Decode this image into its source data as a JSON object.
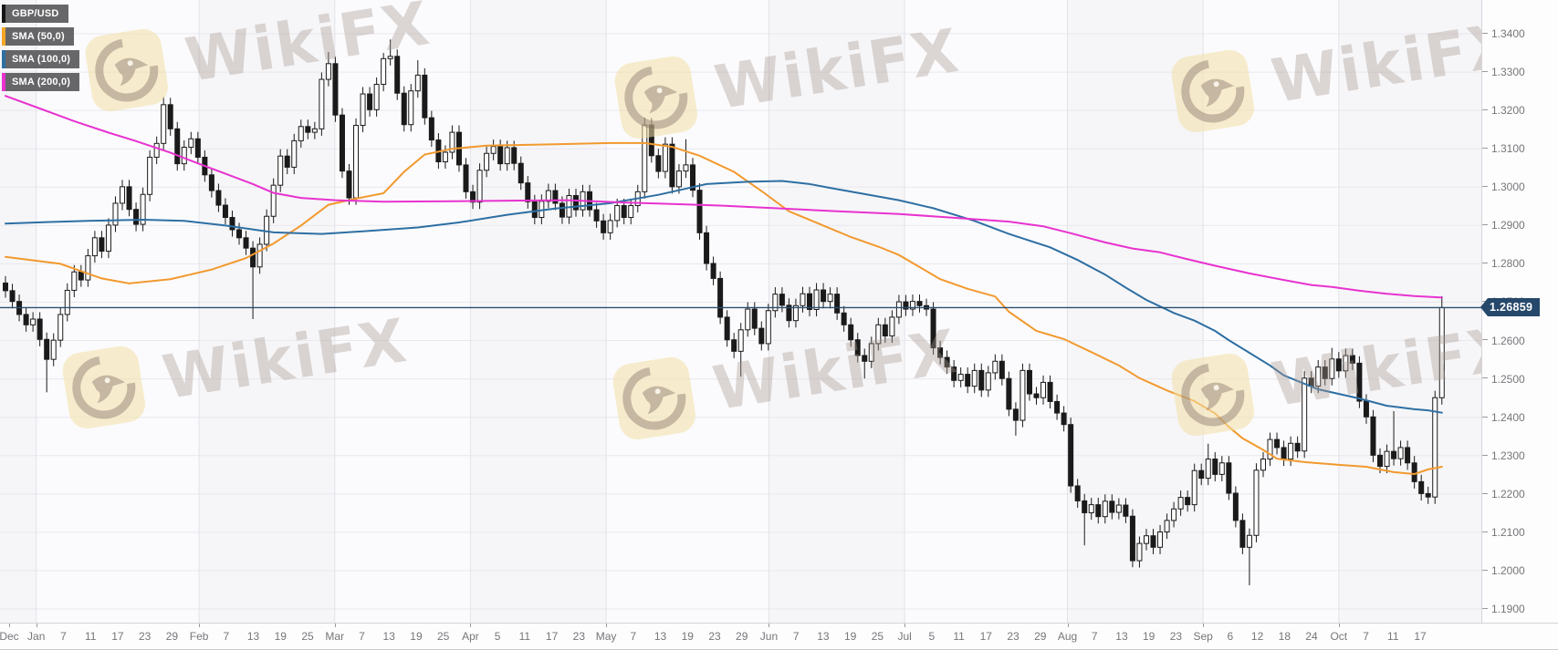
{
  "chart": {
    "symbol": "GBP/USD",
    "legend": [
      {
        "label": "GBP/USD",
        "color": "#151515"
      },
      {
        "label": "SMA (50,0)",
        "color": "#f5a623"
      },
      {
        "label": "SMA (100,0)",
        "color": "#2e6fa3"
      },
      {
        "label": "SMA (200,0)",
        "color": "#e832cf"
      }
    ],
    "last_price_label": "1.26859"
  },
  "watermark": {
    "text": "WikiFX",
    "logo": "eagle-logo"
  },
  "chart_data": {
    "type": "candlestick",
    "title": "GBP/USD daily candles with SMA(50), SMA(100), SMA(200) and last-price line 1.26859",
    "xlabel": "",
    "ylabel": "",
    "y_axis_ticks": [
      "1.3400",
      "1.3300",
      "1.3200",
      "1.3100",
      "1.3000",
      "1.2900",
      "1.2800",
      "1.2700",
      "1.2600",
      "1.2500",
      "1.2400",
      "1.2300",
      "1.2200",
      "1.2100",
      "1.2000",
      "1.1900"
    ],
    "y_range_visible": [
      1.1864,
      1.3488
    ],
    "x_axis_labels": [
      "Dec",
      "Jan",
      "7",
      "11",
      "17",
      "23",
      "29",
      "Feb",
      "7",
      "13",
      "19",
      "25",
      "Mar",
      "7",
      "13",
      "19",
      "25",
      "Apr",
      "5",
      "11",
      "17",
      "23",
      "May",
      "7",
      "13",
      "19",
      "23",
      "29",
      "Jun",
      "7",
      "13",
      "19",
      "25",
      "Jul",
      "5",
      "11",
      "17",
      "23",
      "29",
      "Aug",
      "7",
      "13",
      "19",
      "23",
      "Sep",
      "6",
      "12",
      "18",
      "24",
      "Oct",
      "7",
      "11",
      "17"
    ],
    "last_price": 1.26859,
    "grid": true,
    "legend_position": "top-left",
    "closes": [
      1.273,
      1.2702,
      1.2668,
      1.2641,
      1.2656,
      1.2603,
      1.2551,
      1.2601,
      1.2668,
      1.2731,
      1.2779,
      1.2758,
      1.2821,
      1.2868,
      1.2833,
      1.2901,
      1.2958,
      1.3001,
      1.2942,
      1.2903,
      1.2981,
      1.3078,
      1.3114,
      1.3215,
      1.3152,
      1.3061,
      1.3104,
      1.3126,
      1.3078,
      1.3032,
      1.2991,
      1.2953,
      1.2921,
      1.2889,
      1.2868,
      1.2841,
      1.2792,
      1.2851,
      1.2924,
      1.3005,
      1.3081,
      1.3052,
      1.3121,
      1.3158,
      1.3143,
      1.3152,
      1.3281,
      1.3322,
      1.3188,
      1.3042,
      1.2972,
      1.3161,
      1.3243,
      1.3202,
      1.3268,
      1.3335,
      1.3341,
      1.3245,
      1.3163,
      1.3251,
      1.3292,
      1.3181,
      1.3123,
      1.3066,
      1.3091,
      1.3143,
      1.3058,
      1.2988,
      1.2961,
      1.3044,
      1.3088,
      1.3106,
      1.3061,
      1.3103,
      1.3062,
      1.3011,
      1.2962,
      1.2921,
      1.2963,
      1.2991,
      1.2958,
      1.2922,
      1.2978,
      1.2941,
      1.2988,
      1.2941,
      1.2912,
      1.2881,
      1.2913,
      1.2952,
      1.2921,
      1.2952,
      1.2988,
      1.3162,
      1.3082,
      1.3041,
      1.3112,
      1.3001,
      1.3042,
      1.3058,
      1.2992,
      1.2881,
      1.2801,
      1.2762,
      1.2661,
      1.2602,
      1.2572,
      1.2628,
      1.2682,
      1.2632,
      1.2592,
      1.2678,
      1.2721,
      1.2692,
      1.2652,
      1.2691,
      1.2722,
      1.2681,
      1.2732,
      1.2702,
      1.2721,
      1.2672,
      1.2641,
      1.2602,
      1.2561,
      1.2546,
      1.2592,
      1.2641,
      1.2612,
      1.2661,
      1.2701,
      1.2682,
      1.2702,
      1.2691,
      1.2682,
      1.2581,
      1.2556,
      1.2531,
      1.2496,
      1.2512,
      1.2481,
      1.2522,
      1.2471,
      1.2516,
      1.2546,
      1.2501,
      1.2421,
      1.2392,
      1.2522,
      1.2461,
      1.2451,
      1.2491,
      1.2441,
      1.2411,
      1.2381,
      1.2221,
      1.2182,
      1.2151,
      1.2172,
      1.2141,
      1.2181,
      1.2152,
      1.2171,
      1.2142,
      1.2026,
      1.2071,
      1.2091,
      1.2061,
      1.2101,
      1.2131,
      1.2161,
      1.2191,
      1.2172,
      1.2261,
      1.2241,
      1.2291,
      1.2251,
      1.2281,
      1.2202,
      1.2131,
      1.2061,
      1.2092,
      1.2262,
      1.2291,
      1.2342,
      1.2321,
      1.2291,
      1.2332,
      1.2312,
      1.2502,
      1.2481,
      1.2531,
      1.2501,
      1.2552,
      1.2521,
      1.2561,
      1.2541,
      1.2442,
      1.2401,
      1.2301,
      1.2272,
      1.2311,
      1.2292,
      1.2321,
      1.2281,
      1.2232,
      1.2201,
      1.2192,
      1.2451,
      1.26859
    ],
    "wick_overrides": {
      "6": {
        "low": 1.2465
      },
      "23": {
        "high": 1.3235
      },
      "36": {
        "low": 1.2656
      },
      "47": {
        "high": 1.3352
      },
      "55": {
        "high": 1.335
      },
      "56": {
        "high": 1.3385
      },
      "60": {
        "high": 1.3331
      },
      "93": {
        "high": 1.3181
      },
      "99": {
        "high": 1.3125
      },
      "107": {
        "low": 1.2506
      },
      "125": {
        "low": 1.2501
      },
      "147": {
        "low": 1.2352
      },
      "157": {
        "low": 1.2066
      },
      "164": {
        "low": 1.2009
      },
      "175": {
        "high": 1.2331
      },
      "181": {
        "low": 1.1962
      },
      "193": {
        "high": 1.2581
      },
      "202": {
        "high": 1.2416
      },
      "209": {
        "high": 1.2716
      }
    },
    "series": [
      {
        "name": "SMA (50,0)",
        "color": "#f2992e",
        "points": [
          [
            0,
            1.2818
          ],
          [
            8,
            1.28
          ],
          [
            14,
            1.2762
          ],
          [
            18,
            1.2749
          ],
          [
            24,
            1.276
          ],
          [
            30,
            1.2785
          ],
          [
            35,
            1.2815
          ],
          [
            39,
            1.2853
          ],
          [
            43,
            1.29
          ],
          [
            47,
            1.2954
          ],
          [
            51,
            1.297
          ],
          [
            55,
            1.2984
          ],
          [
            58,
            1.304
          ],
          [
            61,
            1.3085
          ],
          [
            65,
            1.31
          ],
          [
            70,
            1.3108
          ],
          [
            80,
            1.3112
          ],
          [
            88,
            1.3115
          ],
          [
            93,
            1.3115
          ],
          [
            97,
            1.3105
          ],
          [
            101,
            1.3082
          ],
          [
            106,
            1.304
          ],
          [
            110,
            1.299
          ],
          [
            114,
            1.2937
          ],
          [
            119,
            1.29
          ],
          [
            123,
            1.287
          ],
          [
            127,
            1.2845
          ],
          [
            130,
            1.2823
          ],
          [
            136,
            1.276
          ],
          [
            140,
            1.2735
          ],
          [
            144,
            1.2715
          ],
          [
            146,
            1.2675
          ],
          [
            150,
            1.2625
          ],
          [
            154,
            1.2604
          ],
          [
            158,
            1.257
          ],
          [
            162,
            1.2535
          ],
          [
            165,
            1.2502
          ],
          [
            169,
            1.247
          ],
          [
            173,
            1.2442
          ],
          [
            176,
            1.241
          ],
          [
            178,
            1.2375
          ],
          [
            180,
            1.2345
          ],
          [
            183,
            1.2315
          ],
          [
            185,
            1.2292
          ],
          [
            189,
            1.2283
          ],
          [
            194,
            1.2276
          ],
          [
            198,
            1.2271
          ],
          [
            202,
            1.2257
          ],
          [
            205,
            1.2252
          ],
          [
            207,
            1.2264
          ],
          [
            209,
            1.2271
          ]
        ]
      },
      {
        "name": "SMA (100,0)",
        "color": "#2e6fa3",
        "points": [
          [
            0,
            1.2905
          ],
          [
            6,
            1.2909
          ],
          [
            12,
            1.2912
          ],
          [
            20,
            1.2915
          ],
          [
            26,
            1.2912
          ],
          [
            32,
            1.29
          ],
          [
            39,
            1.2882
          ],
          [
            46,
            1.2878
          ],
          [
            52,
            1.2885
          ],
          [
            60,
            1.2895
          ],
          [
            66,
            1.2908
          ],
          [
            73,
            1.2928
          ],
          [
            80,
            1.2944
          ],
          [
            88,
            1.2958
          ],
          [
            95,
            1.298
          ],
          [
            102,
            1.3008
          ],
          [
            108,
            1.3014
          ],
          [
            113,
            1.3016
          ],
          [
            117,
            1.3008
          ],
          [
            120,
            1.2998
          ],
          [
            125,
            1.2982
          ],
          [
            130,
            1.2966
          ],
          [
            135,
            1.2945
          ],
          [
            141,
            1.2912
          ],
          [
            146,
            1.2878
          ],
          [
            152,
            1.2843
          ],
          [
            156,
            1.281
          ],
          [
            160,
            1.2772
          ],
          [
            163,
            1.2738
          ],
          [
            166,
            1.2706
          ],
          [
            170,
            1.2672
          ],
          [
            173,
            1.2652
          ],
          [
            176,
            1.2625
          ],
          [
            178,
            1.2601
          ],
          [
            181,
            1.2568
          ],
          [
            184,
            1.2535
          ],
          [
            186,
            1.2509
          ],
          [
            191,
            1.2473
          ],
          [
            197,
            1.2449
          ],
          [
            201,
            1.243
          ],
          [
            205,
            1.2421
          ],
          [
            207,
            1.2418
          ],
          [
            209,
            1.2412
          ]
        ]
      },
      {
        "name": "SMA (200,0)",
        "color": "#e832cf",
        "points": [
          [
            0,
            1.3238
          ],
          [
            5,
            1.3205
          ],
          [
            10,
            1.3172
          ],
          [
            15,
            1.3142
          ],
          [
            19,
            1.312
          ],
          [
            24,
            1.309
          ],
          [
            28,
            1.3062
          ],
          [
            32,
            1.3035
          ],
          [
            36,
            1.3008
          ],
          [
            39,
            1.2985
          ],
          [
            43,
            1.2972
          ],
          [
            48,
            1.2966
          ],
          [
            55,
            1.2962
          ],
          [
            65,
            1.2963
          ],
          [
            75,
            1.2965
          ],
          [
            82,
            1.2966
          ],
          [
            90,
            1.296
          ],
          [
            97,
            1.2956
          ],
          [
            104,
            1.2952
          ],
          [
            112,
            1.2945
          ],
          [
            120,
            1.2938
          ],
          [
            130,
            1.293
          ],
          [
            138,
            1.292
          ],
          [
            146,
            1.291
          ],
          [
            151,
            1.2898
          ],
          [
            155,
            1.288
          ],
          [
            160,
            1.2856
          ],
          [
            164,
            1.284
          ],
          [
            168,
            1.283
          ],
          [
            172,
            1.2812
          ],
          [
            176,
            1.2795
          ],
          [
            181,
            1.2775
          ],
          [
            186,
            1.2758
          ],
          [
            190,
            1.2745
          ],
          [
            193,
            1.274
          ],
          [
            197,
            1.273
          ],
          [
            201,
            1.2722
          ],
          [
            205,
            1.2716
          ],
          [
            209,
            1.2712
          ]
        ]
      }
    ],
    "colors": {
      "candle": "#1a1a1a",
      "candle_up_fill": "#ffffff",
      "price_line": "#2b4e6f",
      "badge_bg": "#26486a",
      "grid": "#e8e8ee",
      "month_line": "#e2e2ea",
      "band_a": "#f6f6f8",
      "band_b": "#fbfbfd",
      "axis_text": "#767679"
    }
  }
}
